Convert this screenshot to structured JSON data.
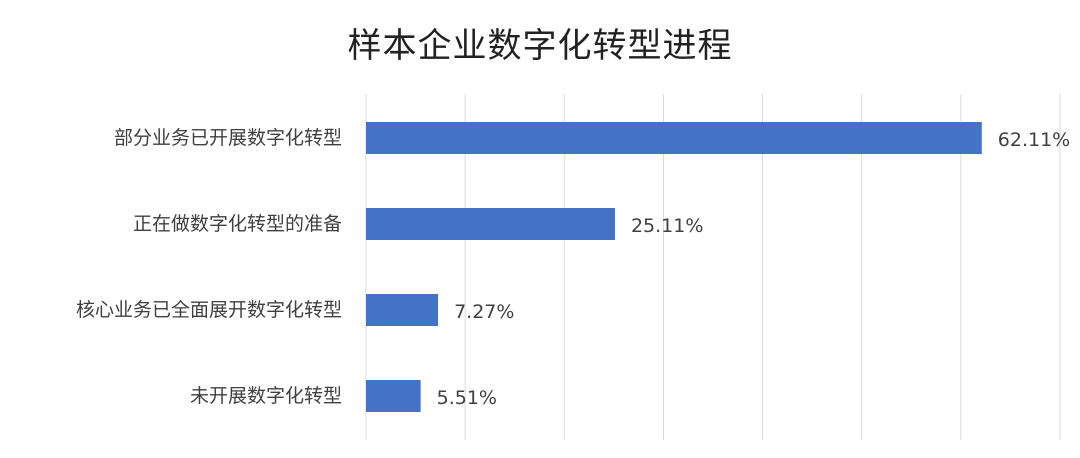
{
  "chart_data": {
    "type": "bar",
    "orientation": "horizontal",
    "title": "样本企业数字化转型进程",
    "categories": [
      "部分业务已开展数字化转型",
      "正在做数字化转型的准备",
      "核心业务已全面展开数字化转型",
      "未开展数字化转型"
    ],
    "values": [
      62.11,
      25.11,
      7.27,
      5.51
    ],
    "value_labels": [
      "62.11%",
      "25.11%",
      "7.27%",
      "5.51%"
    ],
    "xlim": [
      0,
      70
    ],
    "x_gridlines": [
      0,
      10,
      20,
      30,
      40,
      50,
      60,
      70
    ],
    "grid": true,
    "legend": "none",
    "bar_color": "#4472C4"
  }
}
